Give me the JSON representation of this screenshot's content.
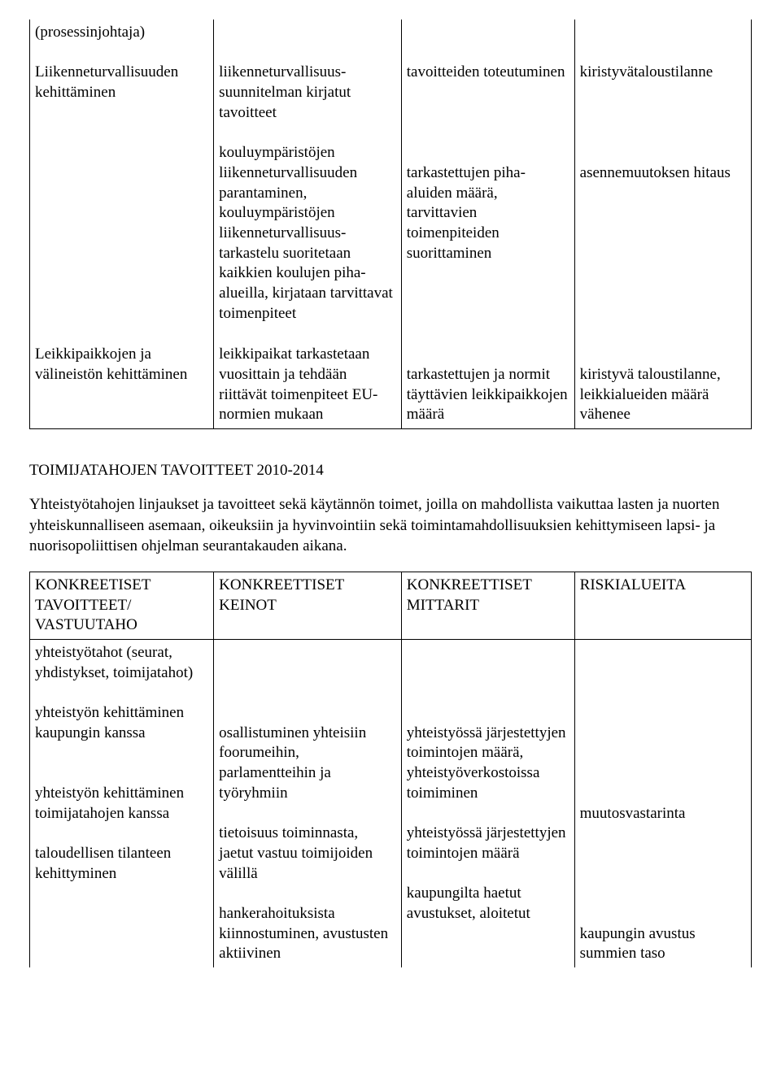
{
  "table1": {
    "rows": [
      {
        "c1": "(prosessinjohtaja)\n\nLiikenneturvallisuuden kehittäminen",
        "c2": "\n\nliikenneturvallisuus-suunnitelman kirjatut tavoitteet\n\nkouluympäristöjen liikenneturvallisuuden parantaminen, kouluympäristöjen liikenneturvallisuus-tarkastelu suoritetaan kaikkien koulujen piha-alueilla, kirjataan tarvittavat toimenpiteet",
        "c3": "\n\ntavoitteiden toteutuminen\n\n\n\n\ntarkastettujen piha-aluiden määrä, tarvittavien toimenpiteiden suorittaminen",
        "c4": "\n\nkiristyvätaloustilanne\n\n\n\n\nasennemuutoksen hitaus"
      },
      {
        "c1": "Leikkipaikkojen ja välineistön kehittäminen",
        "c2": "leikkipaikat tarkastetaan vuosittain ja tehdään riittävät toimenpiteet EU-normien mukaan",
        "c3": "\ntarkastettujen ja normit täyttävien leikkipaikkojen määrä",
        "c4": "\nkiristyvä taloustilanne, leikkialueiden määrä vähenee"
      }
    ]
  },
  "section": {
    "heading": "TOIMIJATAHOJEN TAVOITTEET 2010-2014",
    "body": "Yhteistyötahojen linjaukset ja tavoitteet sekä käytännön toimet, joilla on mahdollista vaikuttaa lasten ja nuorten yhteiskunnalliseen asemaan, oikeuksiin ja hyvinvointiin sekä toimintamahdollisuuksien kehittymiseen lapsi- ja nuorisopoliittisen ohjelman seurantakauden aikana."
  },
  "table2": {
    "header": {
      "c1": "KONKREETISET TAVOITTEET/\nVASTUUTAHO",
      "c2": "KONKREETTISET KEINOT",
      "c3": "KONKREETTISET MITTARIT",
      "c4": "RISKIALUEITA"
    },
    "row1": {
      "c1": "yhteistyötahot (seurat, yhdistykset, toimijatahot)\n\nyhteistyön kehittäminen kaupungin kanssa\n\n\nyhteistyön kehittäminen toimijatahojen kanssa\n\ntaloudellisen tilanteen kehittyminen",
      "c2": "\n\n\n\nosallistuminen yhteisiin foorumeihin, parlamentteihin ja työryhmiin\n\ntietoisuus toiminnasta, jaetut vastuu toimijoiden välillä\n\nhankerahoituksista kiinnostuminen, avustusten aktiivinen",
      "c3": "\n\n\n\nyhteistyössä järjestettyjen toimintojen määrä, yhteistyöverkostoissa toimiminen\n\nyhteistyössä järjestettyjen toimintojen määrä\n\nkaupungilta haetut avustukset, aloitetut",
      "c4": "\n\n\n\n\n\n\n\nmuutosvastarinta\n\n\n\n\n\nkaupungin avustus summien taso"
    }
  }
}
